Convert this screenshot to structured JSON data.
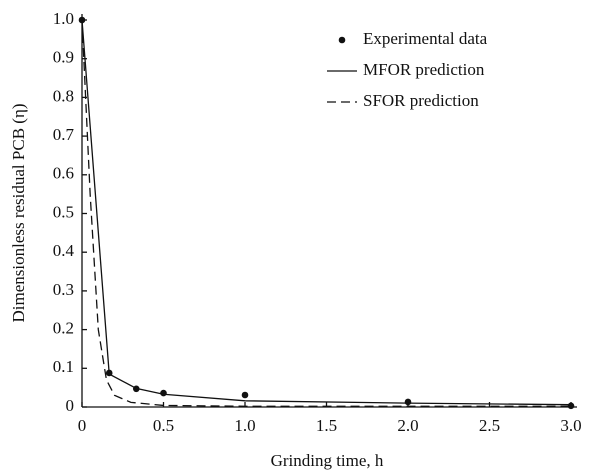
{
  "chart_data": {
    "type": "line",
    "x_label": "Grinding time, h",
    "y_label": "Dimensionless residual PCB (η)",
    "xlim": [
      0,
      3
    ],
    "ylim": [
      0,
      1
    ],
    "xticks": [
      0,
      0.5,
      {
        "value": 1,
        "label": "1.0"
      },
      1.5,
      {
        "value": 2,
        "label": "2.0"
      },
      2.5,
      {
        "value": 3,
        "label": "3.0"
      }
    ],
    "yticks": [
      0,
      0.1,
      0.2,
      0.3,
      0.4,
      0.5,
      0.6,
      0.7,
      0.8,
      0.9,
      {
        "value": 1,
        "label": "1.0"
      }
    ],
    "legend": "upper right",
    "series": [
      {
        "name": "Experimental data",
        "color": "#111111",
        "style": "marker",
        "x": [
          0,
          0.167,
          0.333,
          0.5,
          1,
          2,
          3
        ],
        "values": [
          1,
          0.088,
          0.047,
          0.036,
          0.031,
          0.013,
          0.003
        ]
      },
      {
        "name": "MFOR prediction",
        "color": "#111111",
        "style": "solid",
        "x": [
          0,
          0.167,
          0.333,
          0.5,
          1,
          2,
          3
        ],
        "values": [
          1,
          0.085,
          0.048,
          0.033,
          0.016,
          0.01,
          0.006
        ]
      },
      {
        "name": "SFOR prediction",
        "color": "#111111",
        "style": "dashed",
        "x": [
          0,
          0.05,
          0.1,
          0.15,
          0.2,
          0.3,
          0.5,
          1,
          2,
          3
        ],
        "values": [
          1,
          0.55,
          0.2,
          0.07,
          0.03,
          0.012,
          0.004,
          0.002,
          0.002,
          0.002
        ]
      }
    ]
  }
}
